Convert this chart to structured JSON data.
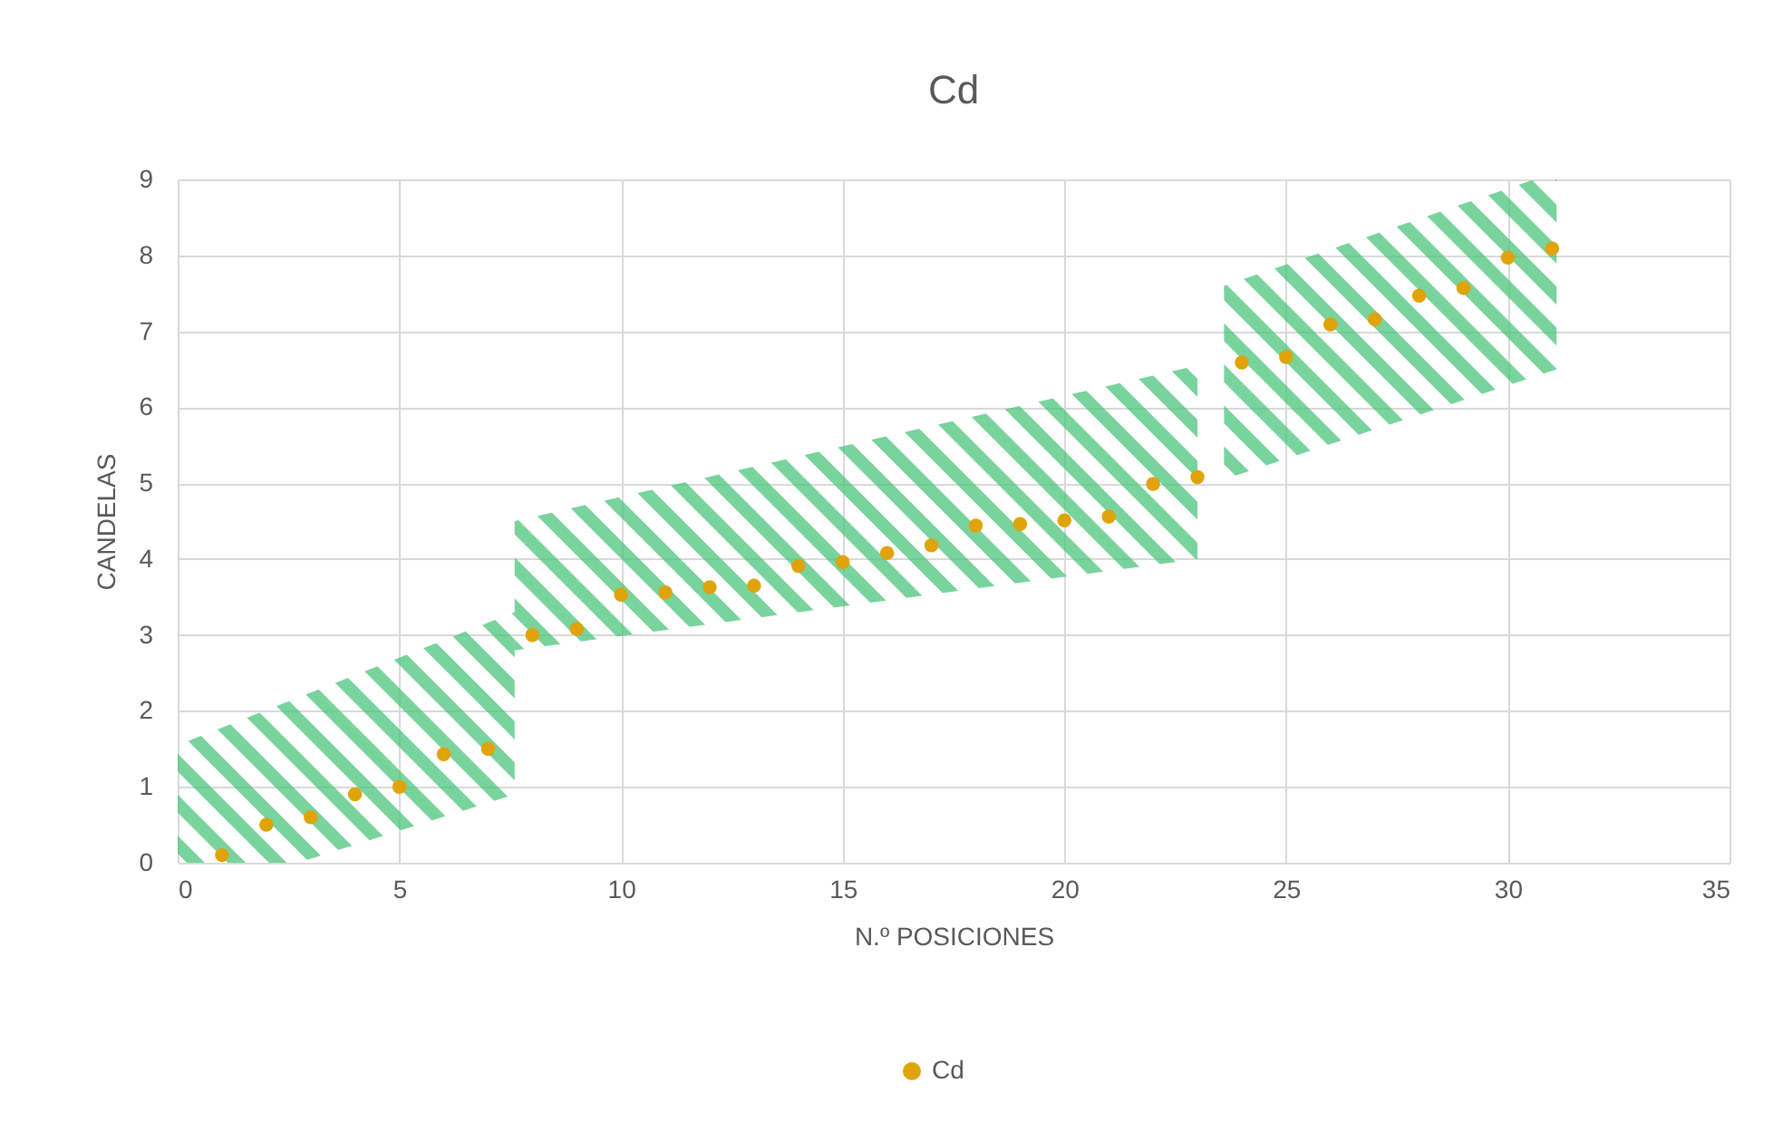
{
  "chart_data": {
    "type": "scatter",
    "title": "Cd",
    "xlabel": "N.º POSICIONES",
    "ylabel": "CANDELAS",
    "x": [
      1,
      2,
      3,
      4,
      5,
      6,
      7,
      8,
      9,
      10,
      11,
      12,
      13,
      14,
      15,
      16,
      17,
      18,
      19,
      20,
      21,
      22,
      23,
      24,
      25,
      26,
      27,
      28,
      29,
      30,
      31
    ],
    "series": [
      {
        "name": "Cd",
        "color": "#e0a30a",
        "values": [
          0.1,
          0.5,
          0.6,
          0.9,
          1.0,
          1.43,
          1.5,
          3.0,
          3.08,
          3.53,
          3.56,
          3.63,
          3.65,
          3.91,
          3.96,
          4.08,
          4.18,
          4.44,
          4.46,
          4.51,
          4.56,
          4.99,
          5.08,
          6.59,
          6.66,
          7.09,
          7.16,
          7.47,
          7.57,
          7.97,
          8.09
        ]
      }
    ],
    "xlim": [
      0,
      35
    ],
    "xticks": [
      0,
      5,
      10,
      15,
      20,
      25,
      30,
      35
    ],
    "ylim": [
      0,
      9
    ],
    "yticks": [
      0,
      1,
      2,
      3,
      4,
      5,
      6,
      7,
      8,
      9
    ],
    "grid": true,
    "legend": "bottom",
    "marker": "circle"
  }
}
